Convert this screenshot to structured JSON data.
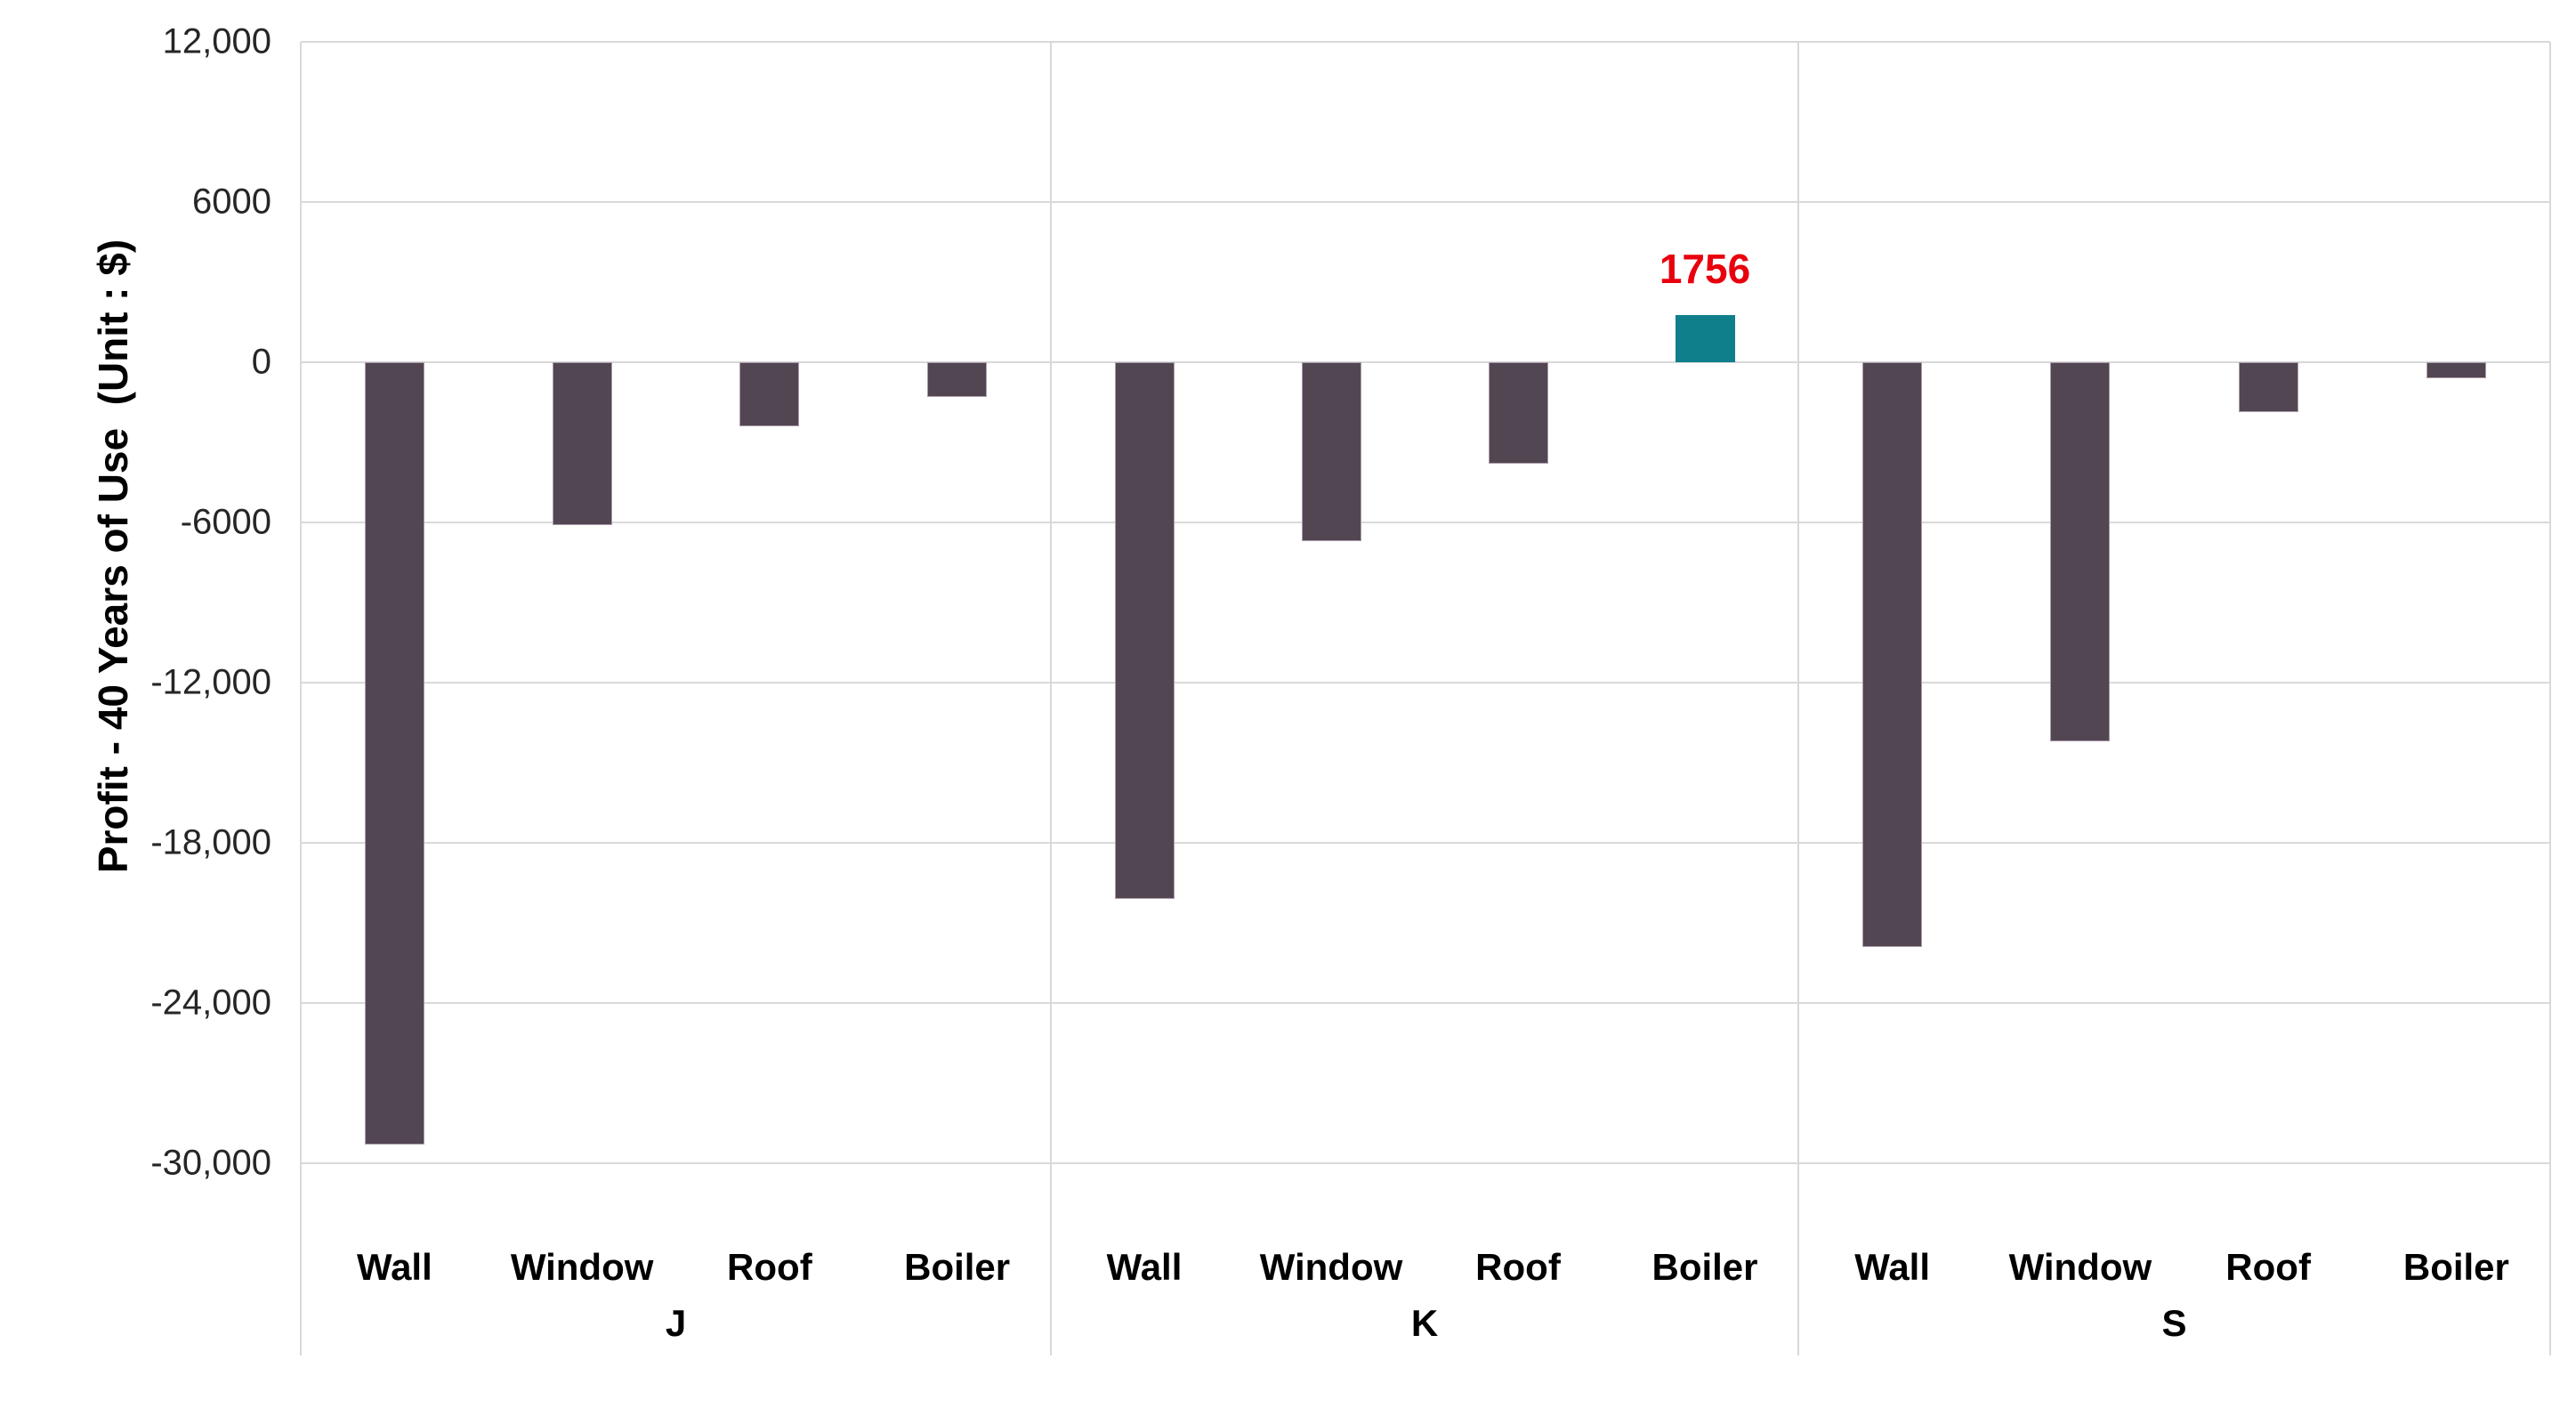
{
  "chart_data": {
    "type": "bar",
    "title": "",
    "xlabel": "",
    "ylabel": "Profit - 40 Years of Use  (Unit : $)",
    "ylim": [
      -30000,
      12000
    ],
    "ytick_step": 6000,
    "yticks": [
      {
        "value": 12000,
        "label": "12,000"
      },
      {
        "value": 6000,
        "label": "6000"
      },
      {
        "value": 0,
        "label": "0"
      },
      {
        "value": -6000,
        "label": "-6000"
      },
      {
        "value": -12000,
        "label": "-12,000"
      },
      {
        "value": -18000,
        "label": "-18,000"
      },
      {
        "value": -24000,
        "label": "-24,000"
      },
      {
        "value": -30000,
        "label": "-30,000"
      }
    ],
    "grid": true,
    "legend": "none",
    "groups": [
      {
        "label": "J",
        "bars": [
          {
            "category": "Wall",
            "value": -29300
          },
          {
            "category": "Window",
            "value": -6100
          },
          {
            "category": "Roof",
            "value": -2400
          },
          {
            "category": "Boiler",
            "value": -1300
          }
        ]
      },
      {
        "label": "K",
        "bars": [
          {
            "category": "Wall",
            "value": -20100
          },
          {
            "category": "Window",
            "value": -6700
          },
          {
            "category": "Roof",
            "value": -3800
          },
          {
            "category": "Boiler",
            "value": 1756,
            "label": "1756"
          }
        ]
      },
      {
        "label": "S",
        "bars": [
          {
            "category": "Wall",
            "value": -21900
          },
          {
            "category": "Window",
            "value": -14200
          },
          {
            "category": "Roof",
            "value": -1850
          },
          {
            "category": "Boiler",
            "value": -600
          }
        ]
      }
    ],
    "colors": {
      "bar_negative": "#524653",
      "bar_negative_border": "#AB9DAA",
      "bar_positive": "#0E7F8B",
      "annotation_text": "#E8000D",
      "gridline": "#D9D9D9",
      "tick_text": "#262626",
      "label_text": "#000000",
      "background": "#FFFFFF"
    }
  }
}
